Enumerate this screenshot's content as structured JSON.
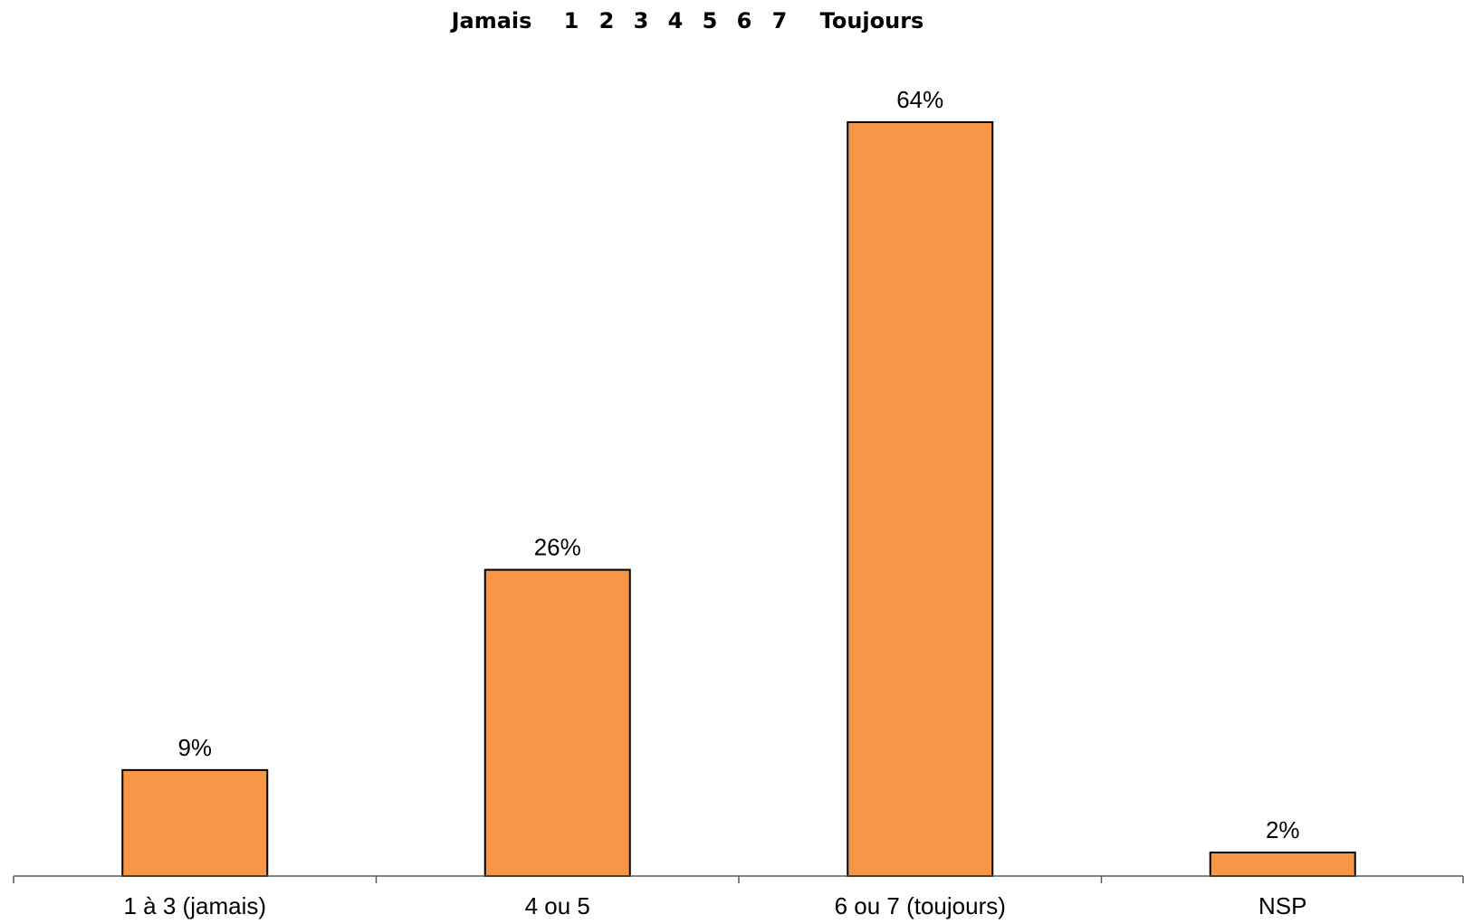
{
  "scale_legend": {
    "low_label": "Jamais",
    "points": [
      "1",
      "2",
      "3",
      "4",
      "5",
      "6",
      "7"
    ],
    "high_label": "Toujours"
  },
  "chart_data": {
    "type": "bar",
    "categories": [
      "1 à 3 (jamais)",
      "4 ou 5",
      "6 ou 7 (toujours)",
      "NSP"
    ],
    "values": [
      9,
      26,
      64,
      2
    ],
    "data_labels": [
      "9%",
      "26%",
      "64%",
      "2%"
    ],
    "unit": "%",
    "title": "",
    "xlabel": "",
    "ylabel": "",
    "ylim": [
      0,
      64
    ],
    "grid": false,
    "legend": "none"
  },
  "colors": {
    "bar_fill": "#F79646",
    "bar_stroke": "#000000",
    "axis": "#595959",
    "text": "#000000"
  }
}
